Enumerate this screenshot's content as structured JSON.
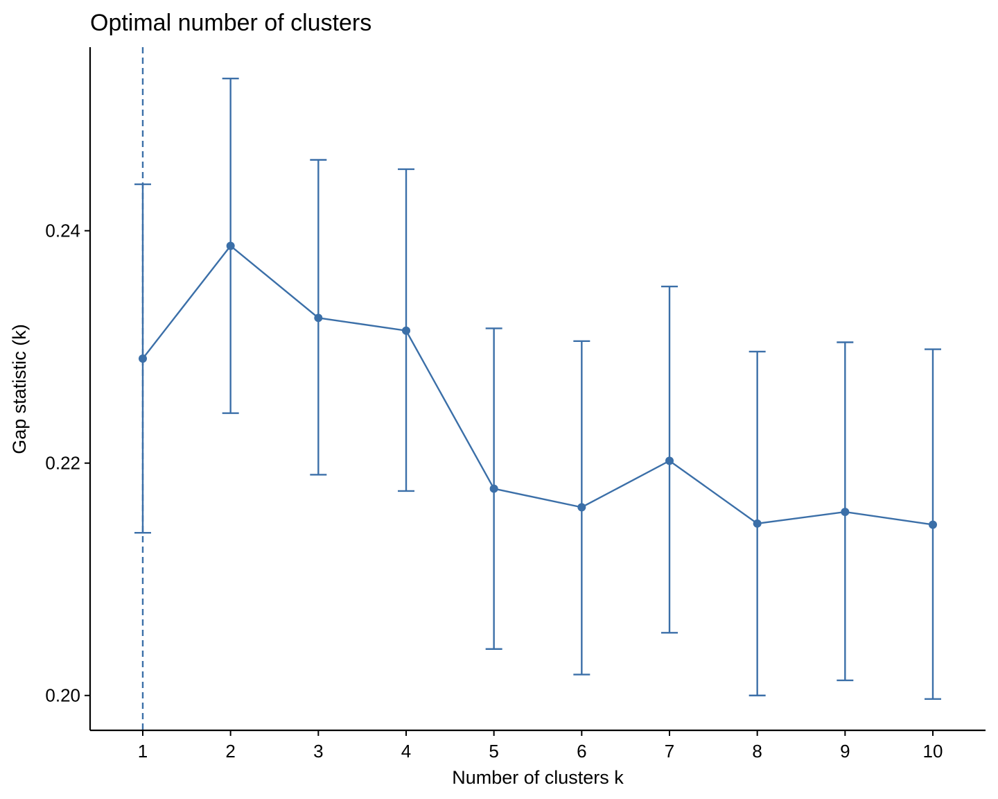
{
  "chart_data": {
    "type": "line",
    "title": "Optimal number of clusters",
    "xlabel": "Number of clusters k",
    "ylabel": "Gap statistic (k)",
    "x": [
      1,
      2,
      3,
      4,
      5,
      6,
      7,
      8,
      9,
      10
    ],
    "x_tick_labels": [
      "1",
      "2",
      "3",
      "4",
      "5",
      "6",
      "7",
      "8",
      "9",
      "10"
    ],
    "y_ticks": [
      0.2,
      0.22,
      0.24
    ],
    "y_tick_labels": [
      "0.20",
      "0.22",
      "0.24"
    ],
    "ylim": [
      0.197,
      0.2558
    ],
    "xlim": [
      0.4,
      10.6
    ],
    "series": [
      {
        "values": [
          0.229,
          0.2387,
          0.2325,
          0.2314,
          0.2178,
          0.2162,
          0.2202,
          0.2148,
          0.2158,
          0.2147
        ],
        "error_lower": [
          0.214,
          0.2243,
          0.219,
          0.2176,
          0.204,
          0.2018,
          0.2054,
          0.2,
          0.2013,
          0.1997
        ],
        "error_upper": [
          0.244,
          0.2531,
          0.2461,
          0.2453,
          0.2316,
          0.2305,
          0.2352,
          0.2296,
          0.2304,
          0.2298
        ]
      }
    ],
    "optimal_k": 1,
    "grid": false,
    "colors": {
      "series": "#3B6FA8",
      "axis": "#000000"
    }
  }
}
